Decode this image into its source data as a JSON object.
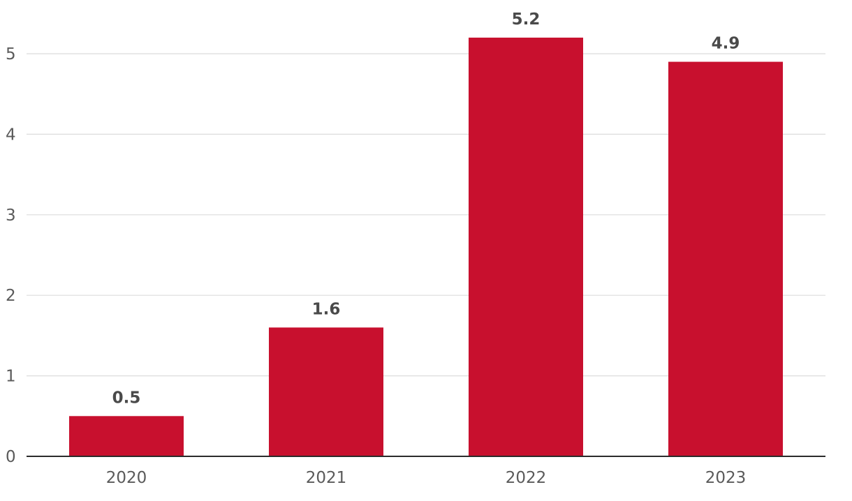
{
  "chart_data": {
    "type": "bar",
    "categories": [
      "2020",
      "2021",
      "2022",
      "2023"
    ],
    "values": [
      0.5,
      1.6,
      5.2,
      4.9
    ],
    "value_labels": [
      "0.5",
      "1.6",
      "5.2",
      "4.9"
    ],
    "y_ticks": [
      "0",
      "1",
      "2",
      "3",
      "4",
      "5"
    ],
    "ylim": [
      0,
      5.2
    ],
    "grid": true,
    "legend": "none",
    "title": "",
    "xlabel": "",
    "ylabel": "",
    "bar_color": "#c8102e",
    "grid_color": "#dcdcdc",
    "axis_color": "#2b2b2b"
  }
}
